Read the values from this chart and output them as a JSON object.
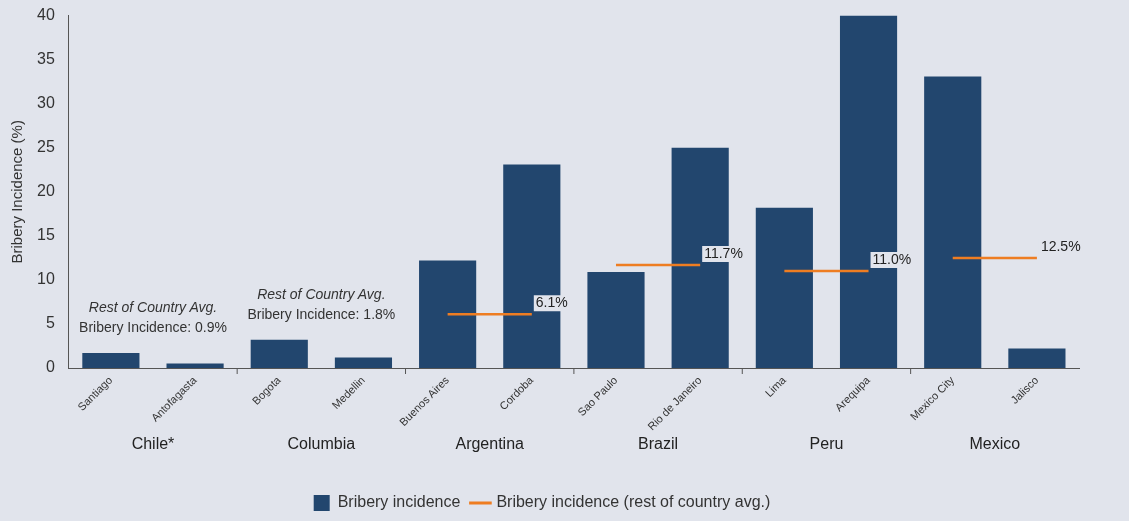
{
  "chart_data": {
    "type": "bar",
    "ylabel": "Bribery Incidence (%)",
    "categories": [
      "Santiago",
      "Antofagasta",
      "Bogota",
      "Medellin",
      "Buenos Aires",
      "Cordoba",
      "Sao Paulo",
      "Rio de Janeiro",
      "Lima",
      "Arequipa",
      "Mexico City",
      "Jalisco"
    ],
    "series": [
      {
        "name": "Bribery incidence",
        "color": "#22466e",
        "values": [
          1.7,
          0.5,
          3.2,
          1.2,
          12.2,
          23.1,
          10.9,
          25.0,
          18.2,
          40,
          33.1,
          2.2
        ]
      },
      {
        "name": "Bribery incidence (rest of country avg.)",
        "type": "line",
        "color": "#ee7d22",
        "values": [
          null,
          null,
          null,
          null,
          6.1,
          6.1,
          null,
          null,
          null,
          null,
          null,
          null
        ],
        "value_labels": [
          null,
          null,
          null,
          null,
          null,
          "6.1%",
          null,
          null,
          null,
          null,
          null,
          null
        ]
      },
      {
        "type": "line",
        "color": "#ee7d22",
        "values": [
          null,
          null,
          null,
          null,
          null,
          null,
          11.7,
          11.7,
          null,
          null,
          null,
          null
        ],
        "value_labels": [
          null,
          null,
          null,
          null,
          null,
          null,
          null,
          "11.7%",
          null,
          null,
          null,
          null
        ]
      },
      {
        "type": "line",
        "color": "#ee7d22",
        "values": [
          null,
          null,
          null,
          null,
          null,
          null,
          null,
          null,
          11.0,
          11.0,
          null,
          null
        ],
        "value_labels": [
          null,
          null,
          null,
          null,
          null,
          null,
          null,
          null,
          null,
          "11.0%",
          null,
          null
        ]
      },
      {
        "type": "line",
        "color": "#ee7d22",
        "values": [
          null,
          null,
          null,
          null,
          null,
          null,
          null,
          null,
          null,
          null,
          12.5,
          12.5
        ],
        "value_labels": [
          null,
          null,
          null,
          null,
          null,
          null,
          null,
          null,
          null,
          null,
          null,
          "12.5%"
        ]
      }
    ],
    "annotations": [
      "Chile*",
      "Columbia",
      "Argentina",
      "Brazil",
      "Peru",
      "Mexico",
      "Rest of Country Avg.\nBribery Incidence: 0.9%",
      "Rest of Country Avg.\nBribery Incidence: 1.8%"
    ],
    "ylim": [
      0,
      40
    ],
    "yticks": [
      0,
      5,
      10,
      15,
      20,
      25,
      30,
      35,
      40
    ],
    "grid": false,
    "legend": "bottom"
  }
}
